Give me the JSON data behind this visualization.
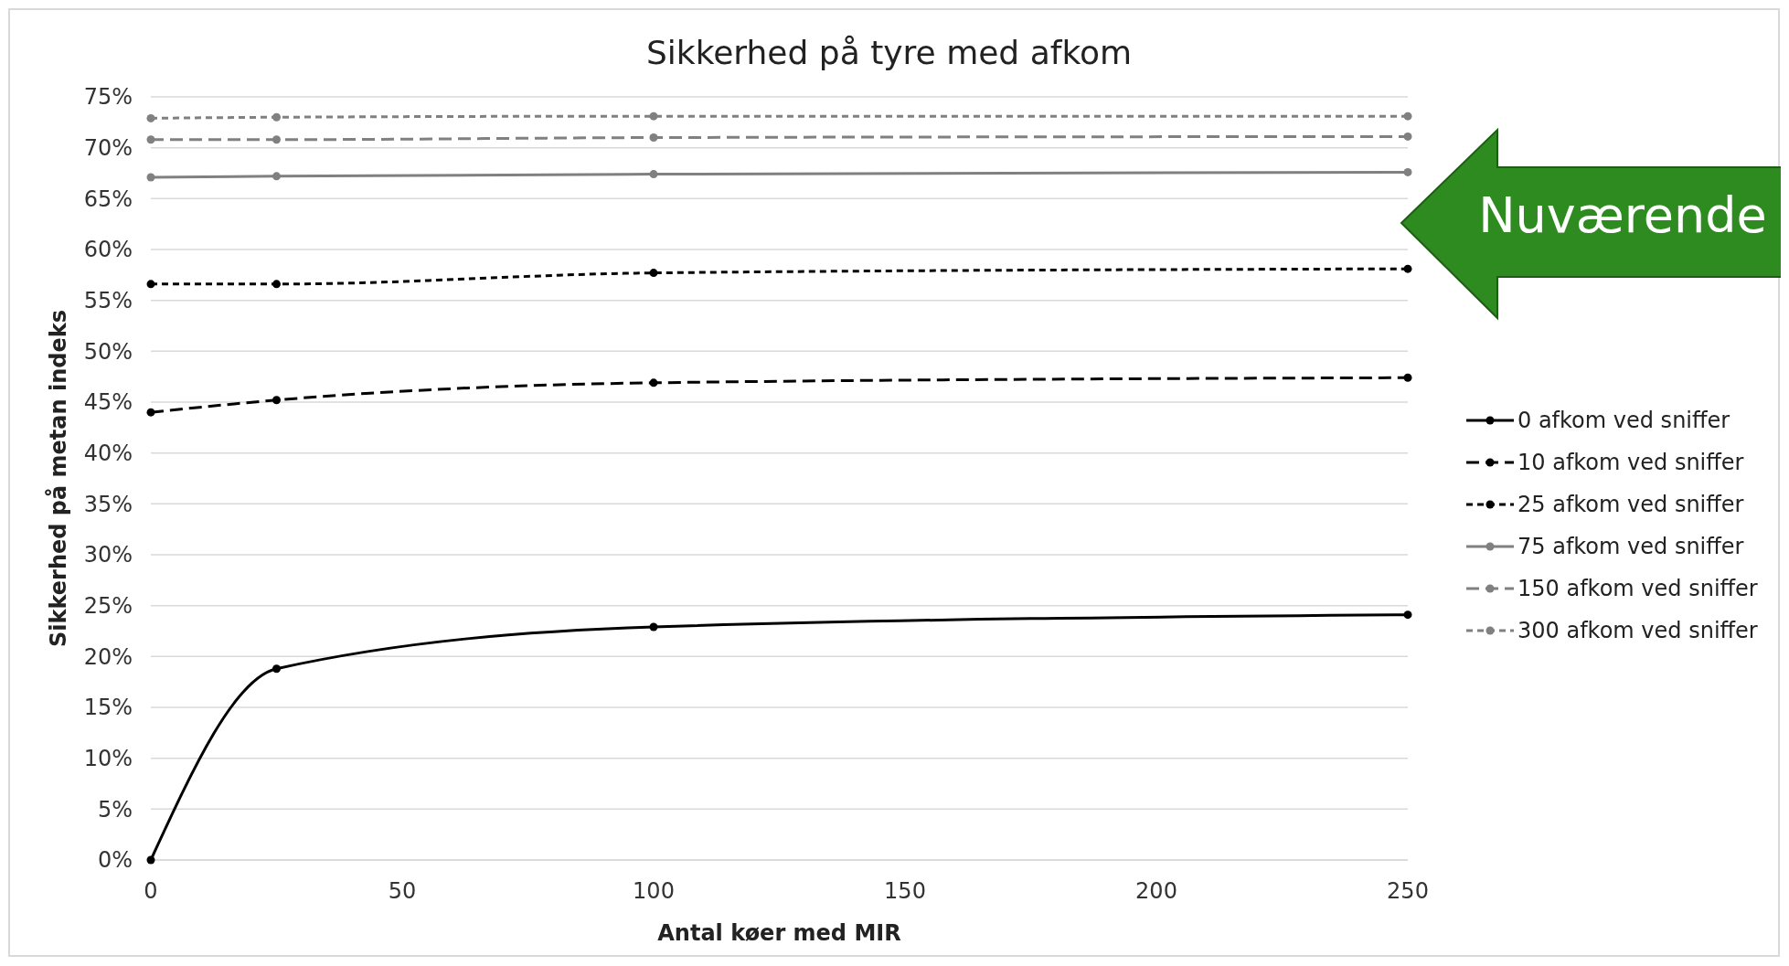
{
  "chart_data": {
    "type": "line",
    "title": "Sikkerhed på tyre med afkom",
    "xlabel": "Antal køer med MIR",
    "ylabel": "Sikkerhed på metan indeks",
    "x": [
      0,
      25,
      100,
      250
    ],
    "xlim": [
      0,
      250
    ],
    "xticks": [
      0,
      50,
      100,
      150,
      200,
      250
    ],
    "ylim": [
      0,
      75
    ],
    "yticks": [
      {
        "value": 0,
        "label": "0%"
      },
      {
        "value": 5,
        "label": "5%"
      },
      {
        "value": 10,
        "label": "10%"
      },
      {
        "value": 15,
        "label": "15%"
      },
      {
        "value": 20,
        "label": "20%"
      },
      {
        "value": 25,
        "label": "25%"
      },
      {
        "value": 30,
        "label": "30%"
      },
      {
        "value": 35,
        "label": "35%"
      },
      {
        "value": 40,
        "label": "40%"
      },
      {
        "value": 45,
        "label": "45%"
      },
      {
        "value": 50,
        "label": "50%"
      },
      {
        "value": 55,
        "label": "55%"
      },
      {
        "value": 60,
        "label": "60%"
      },
      {
        "value": 65,
        "label": "65%"
      },
      {
        "value": 70,
        "label": "70%"
      },
      {
        "value": 75,
        "label": "75%"
      }
    ],
    "grid": "y",
    "legend": "right",
    "marker": "circle",
    "annotations": [
      "Nuværende"
    ],
    "series": [
      {
        "name": "0 afkom ved sniffer",
        "color": "#000000",
        "line_style": "solid",
        "values": [
          0,
          18.8,
          22.9,
          24.1
        ]
      },
      {
        "name": "10 afkom ved sniffer",
        "color": "#000000",
        "line_style": "dashed",
        "values": [
          44.0,
          45.2,
          46.9,
          47.4
        ]
      },
      {
        "name": "25 afkom ved sniffer",
        "color": "#000000",
        "line_style": "dotted",
        "values": [
          56.6,
          56.6,
          57.7,
          58.1
        ]
      },
      {
        "name": "75 afkom ved sniffer",
        "color": "#808080",
        "line_style": "solid",
        "values": [
          67.1,
          67.2,
          67.4,
          67.6
        ]
      },
      {
        "name": "150 afkom ved sniffer",
        "color": "#808080",
        "line_style": "dashed",
        "values": [
          70.8,
          70.8,
          71.0,
          71.1
        ]
      },
      {
        "name": "300 afkom ved sniffer",
        "color": "#808080",
        "line_style": "dotted",
        "values": [
          72.9,
          73.0,
          73.1,
          73.1
        ]
      }
    ]
  }
}
